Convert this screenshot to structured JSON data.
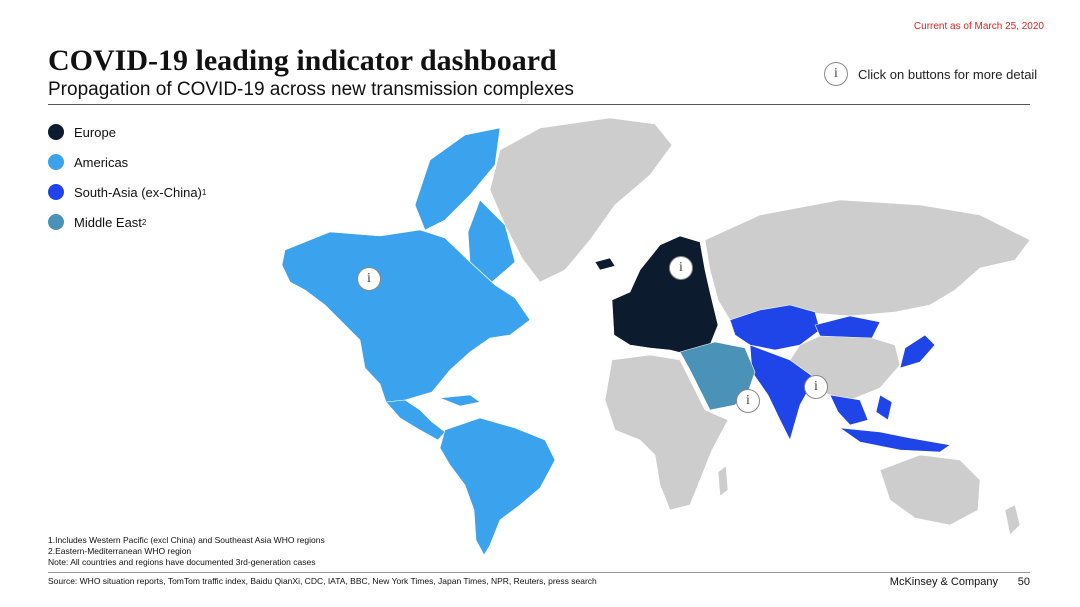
{
  "header": {
    "date": "Current as of March 25, 2020",
    "title": "COVID-19 leading indicator dashboard",
    "subtitle": "Propagation of COVID-19 across new transmission complexes",
    "hint": "Click on buttons for more detail"
  },
  "info_glyph": "i",
  "legend": [
    {
      "label": "Europe",
      "sup": "",
      "color": "#0d1b2e"
    },
    {
      "label": "Americas",
      "sup": "",
      "color": "#3ba2ee"
    },
    {
      "label": "South-Asia (ex-China)",
      "sup": "1",
      "color": "#1f44e8"
    },
    {
      "label": "Middle East",
      "sup": "2",
      "color": "#4a92b8"
    }
  ],
  "colors": {
    "other": "#cdcdcd",
    "europe": "#0d1b2e",
    "americas": "#3ba2ee",
    "south_asia": "#1f44e8",
    "middle_east": "#4a92b8",
    "date_text": "#e02020"
  },
  "icons": {
    "info": "info-circle-icon"
  },
  "notes": [
    "1.Includes Western Pacific (excl China) and Southeast Asia WHO regions",
    "2.Eastern-Mediterranean WHO region",
    "Note: All countries and regions have documented 3rd-generation cases"
  ],
  "footer": {
    "source": "Source: WHO situation reports, TomTom traffic index, Baidu QianXi, CDC, IATA, BBC, New York Times, Japan Times, NPR, Reuters, press search",
    "brand": "McKinsey & Company",
    "page": "50"
  }
}
